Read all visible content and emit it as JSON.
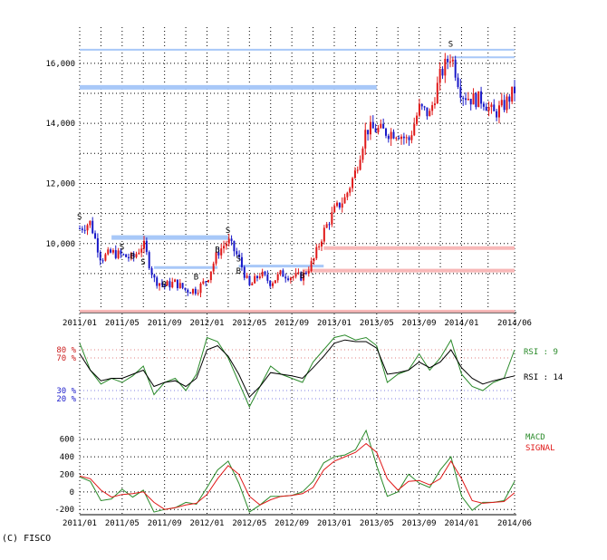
{
  "copyright": "(C) FISCO",
  "colors": {
    "up_candle": "#e01818",
    "down_candle": "#1818c8",
    "resistance_line": "#a8c8f8",
    "support_line": "#f8b8b8",
    "rsi_fast": "#2a8a2a",
    "rsi_slow": "#000000",
    "macd": "#2a8a2a",
    "signal": "#e01818",
    "grid": "#000000"
  },
  "chart_data": [
    {
      "type": "candlestick",
      "panel": "price",
      "xaxis_ticks": [
        "2011/01",
        "2011/05",
        "2011/09",
        "2012/01",
        "2012/05",
        "2012/09",
        "2013/01",
        "2013/05",
        "2013/09",
        "2014/01",
        "2014/06"
      ],
      "yaxis_ticks": [
        "10,000",
        "12,000",
        "14,000",
        "16,000"
      ],
      "ylim": [
        7700,
        16900
      ],
      "grid": true,
      "close_path": [
        {
          "x": "2011/01",
          "y": 10500
        },
        {
          "x": "2011/02",
          "y": 10700
        },
        {
          "x": "2011/03",
          "y": 9500
        },
        {
          "x": "2011/04",
          "y": 9700
        },
        {
          "x": "2011/05",
          "y": 9600
        },
        {
          "x": "2011/06",
          "y": 9500
        },
        {
          "x": "2011/07",
          "y": 10000
        },
        {
          "x": "2011/08",
          "y": 8800
        },
        {
          "x": "2011/09",
          "y": 8600
        },
        {
          "x": "2011/10",
          "y": 8700
        },
        {
          "x": "2011/11",
          "y": 8450
        },
        {
          "x": "2011/12",
          "y": 8450
        },
        {
          "x": "2012/01",
          "y": 8800
        },
        {
          "x": "2012/02",
          "y": 9700
        },
        {
          "x": "2012/03",
          "y": 10100
        },
        {
          "x": "2012/04",
          "y": 9500
        },
        {
          "x": "2012/05",
          "y": 8550
        },
        {
          "x": "2012/06",
          "y": 9000
        },
        {
          "x": "2012/07",
          "y": 8700
        },
        {
          "x": "2012/08",
          "y": 9000
        },
        {
          "x": "2012/09",
          "y": 8900
        },
        {
          "x": "2012/10",
          "y": 8900
        },
        {
          "x": "2012/11",
          "y": 9400
        },
        {
          "x": "2012/12",
          "y": 10400
        },
        {
          "x": "2013/01",
          "y": 11100
        },
        {
          "x": "2013/02",
          "y": 11500
        },
        {
          "x": "2013/03",
          "y": 12400
        },
        {
          "x": "2013/04",
          "y": 13800
        },
        {
          "x": "2013/05",
          "y": 13800
        },
        {
          "x": "2013/06",
          "y": 13700
        },
        {
          "x": "2013/07",
          "y": 13700
        },
        {
          "x": "2013/08",
          "y": 13400
        },
        {
          "x": "2013/09",
          "y": 14500
        },
        {
          "x": "2013/10",
          "y": 14300
        },
        {
          "x": "2013/11",
          "y": 15600
        },
        {
          "x": "2013/12",
          "y": 16300
        },
        {
          "x": "2014/01",
          "y": 15000
        },
        {
          "x": "2014/02",
          "y": 14800
        },
        {
          "x": "2014/03",
          "y": 14800
        },
        {
          "x": "2014/04",
          "y": 14300
        },
        {
          "x": "2014/05",
          "y": 14600
        },
        {
          "x": "2014/06",
          "y": 15100
        }
      ],
      "resistance_levels": [
        16450,
        15200,
        10200,
        9200,
        9250
      ],
      "support_levels": [
        9850,
        9100,
        7750
      ],
      "signals": [
        {
          "label": "S",
          "x": "2011/01",
          "y": 10800
        },
        {
          "label": "S",
          "x": "2011/05",
          "y": 9800
        },
        {
          "label": "B",
          "x": "2011/06",
          "y": 9500
        },
        {
          "label": "S",
          "x": "2011/07",
          "y": 9300
        },
        {
          "label": "B",
          "x": "2011/09",
          "y": 8550
        },
        {
          "label": "B",
          "x": "2011/12",
          "y": 8800
        },
        {
          "label": "B",
          "x": "2012/02",
          "y": 9700
        },
        {
          "label": "S",
          "x": "2012/03",
          "y": 10350
        },
        {
          "label": "S",
          "x": "2012/04",
          "y": 9400
        },
        {
          "label": "B",
          "x": "2012/04",
          "y": 9000
        },
        {
          "label": "B",
          "x": "2012/10",
          "y": 8850
        },
        {
          "label": "S",
          "x": "2013/12",
          "y": 16550
        }
      ]
    },
    {
      "type": "line",
      "panel": "rsi",
      "yaxis_labels": [
        {
          "text": "80 %",
          "value": 80,
          "color": "#cc2020"
        },
        {
          "text": "70 %",
          "value": 70,
          "color": "#cc2020"
        },
        {
          "text": "30 %",
          "value": 30,
          "color": "#2020cc"
        },
        {
          "text": "20 %",
          "value": 20,
          "color": "#2020cc"
        }
      ],
      "ylim": [
        0,
        100
      ],
      "series": [
        {
          "name": "RSI : 9",
          "color": "#2a8a2a",
          "x": [
            "2011/01",
            "2011/02",
            "2011/03",
            "2011/04",
            "2011/05",
            "2011/06",
            "2011/07",
            "2011/08",
            "2011/09",
            "2011/10",
            "2011/11",
            "2011/12",
            "2012/01",
            "2012/02",
            "2012/03",
            "2012/04",
            "2012/05",
            "2012/06",
            "2012/07",
            "2012/08",
            "2012/09",
            "2012/10",
            "2012/11",
            "2012/12",
            "2013/01",
            "2013/02",
            "2013/03",
            "2013/04",
            "2013/05",
            "2013/06",
            "2013/07",
            "2013/08",
            "2013/09",
            "2013/10",
            "2013/11",
            "2013/12",
            "2014/01",
            "2014/02",
            "2014/03",
            "2014/04",
            "2014/05",
            "2014/06"
          ],
          "values": [
            88,
            55,
            38,
            45,
            40,
            48,
            60,
            25,
            40,
            45,
            30,
            50,
            95,
            90,
            70,
            40,
            10,
            35,
            60,
            50,
            45,
            40,
            65,
            80,
            95,
            98,
            92,
            95,
            85,
            40,
            50,
            55,
            75,
            55,
            70,
            92,
            50,
            35,
            30,
            40,
            45,
            80
          ]
        },
        {
          "name": "RSI : 14",
          "color": "#000000",
          "x": [
            "2011/01",
            "2011/02",
            "2011/03",
            "2011/04",
            "2011/05",
            "2011/06",
            "2011/07",
            "2011/08",
            "2011/09",
            "2011/10",
            "2011/11",
            "2011/12",
            "2012/01",
            "2012/02",
            "2012/03",
            "2012/04",
            "2012/05",
            "2012/06",
            "2012/07",
            "2012/08",
            "2012/09",
            "2012/10",
            "2012/11",
            "2012/12",
            "2013/01",
            "2013/02",
            "2013/03",
            "2013/04",
            "2013/05",
            "2013/06",
            "2013/07",
            "2013/08",
            "2013/09",
            "2013/10",
            "2013/11",
            "2013/12",
            "2014/01",
            "2014/02",
            "2014/03",
            "2014/04",
            "2014/05",
            "2014/06"
          ],
          "values": [
            75,
            55,
            42,
            45,
            45,
            50,
            55,
            35,
            40,
            42,
            35,
            45,
            80,
            85,
            72,
            50,
            22,
            35,
            52,
            50,
            48,
            45,
            58,
            72,
            88,
            92,
            90,
            90,
            82,
            50,
            52,
            55,
            65,
            58,
            65,
            80,
            58,
            45,
            38,
            42,
            45,
            48
          ]
        }
      ]
    },
    {
      "type": "line",
      "panel": "macd",
      "yaxis_ticks": [
        "600",
        "400",
        "200",
        "0",
        "-200"
      ],
      "ylim": [
        -260,
        700
      ],
      "series": [
        {
          "name": "MACD",
          "color": "#2a8a2a",
          "x": [
            "2011/01",
            "2011/02",
            "2011/03",
            "2011/04",
            "2011/05",
            "2011/06",
            "2011/07",
            "2011/08",
            "2011/09",
            "2011/10",
            "2011/11",
            "2011/12",
            "2012/01",
            "2012/02",
            "2012/03",
            "2012/04",
            "2012/05",
            "2012/06",
            "2012/07",
            "2012/08",
            "2012/09",
            "2012/10",
            "2012/11",
            "2012/12",
            "2013/01",
            "2013/02",
            "2013/03",
            "2013/04",
            "2013/05",
            "2013/06",
            "2013/07",
            "2013/08",
            "2013/09",
            "2013/10",
            "2013/11",
            "2013/12",
            "2014/01",
            "2014/02",
            "2014/03",
            "2014/04",
            "2014/05",
            "2014/06"
          ],
          "values": [
            170,
            120,
            -100,
            -80,
            30,
            -60,
            20,
            -230,
            -200,
            -180,
            -120,
            -140,
            50,
            250,
            350,
            100,
            -230,
            -150,
            -50,
            -50,
            -40,
            0,
            120,
            330,
            400,
            420,
            480,
            700,
            300,
            -50,
            0,
            200,
            100,
            50,
            250,
            400,
            -50,
            -210,
            -120,
            -120,
            -100,
            120
          ]
        },
        {
          "name": "SIGNAL",
          "color": "#e01818",
          "x": [
            "2011/01",
            "2011/02",
            "2011/03",
            "2011/04",
            "2011/05",
            "2011/06",
            "2011/07",
            "2011/08",
            "2011/09",
            "2011/10",
            "2011/11",
            "2011/12",
            "2012/01",
            "2012/02",
            "2012/03",
            "2012/04",
            "2012/05",
            "2012/06",
            "2012/07",
            "2012/08",
            "2012/09",
            "2012/10",
            "2012/11",
            "2012/12",
            "2013/01",
            "2013/02",
            "2013/03",
            "2013/04",
            "2013/05",
            "2013/06",
            "2013/07",
            "2013/08",
            "2013/09",
            "2013/10",
            "2013/11",
            "2013/12",
            "2014/01",
            "2014/02",
            "2014/03",
            "2014/04",
            "2014/05",
            "2014/06"
          ],
          "values": [
            180,
            150,
            20,
            -60,
            -30,
            -20,
            0,
            -120,
            -200,
            -180,
            -150,
            -130,
            -30,
            150,
            300,
            200,
            -50,
            -150,
            -90,
            -50,
            -40,
            -20,
            50,
            250,
            350,
            400,
            450,
            550,
            450,
            150,
            20,
            120,
            130,
            80,
            150,
            350,
            150,
            -100,
            -130,
            -120,
            -110,
            -10
          ]
        }
      ]
    }
  ]
}
